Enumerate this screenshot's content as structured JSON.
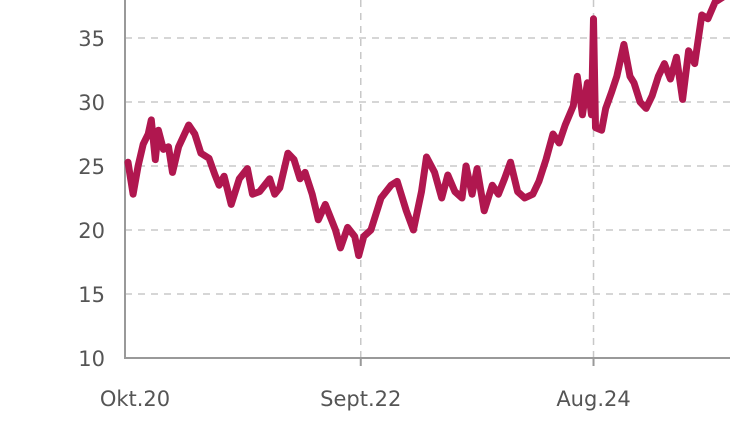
{
  "chart_data": {
    "type": "line",
    "title": "",
    "xlabel": "",
    "ylabel": "",
    "ylim": [
      10,
      38
    ],
    "y_ticks": [
      10,
      15,
      20,
      25,
      30,
      35
    ],
    "x_ticks": [
      {
        "label": "Okt.20",
        "month": 0
      },
      {
        "label": "Sept.22",
        "month": 23
      },
      {
        "label": "Aug.24",
        "month": 46
      }
    ],
    "grid": "dashed",
    "line_color": "#b0174f",
    "series": [
      {
        "name": "",
        "points": [
          [
            0,
            25.3
          ],
          [
            0.5,
            22.8
          ],
          [
            1,
            25.0
          ],
          [
            1.5,
            26.7
          ],
          [
            2,
            27.5
          ],
          [
            2.3,
            28.6
          ],
          [
            2.7,
            25.5
          ],
          [
            3,
            27.8
          ],
          [
            3.5,
            26.3
          ],
          [
            4,
            26.5
          ],
          [
            4.4,
            24.5
          ],
          [
            5,
            26.5
          ],
          [
            6,
            28.2
          ],
          [
            6.6,
            27.5
          ],
          [
            7.2,
            26.0
          ],
          [
            8,
            25.6
          ],
          [
            8.6,
            24.3
          ],
          [
            9,
            23.5
          ],
          [
            9.5,
            24.2
          ],
          [
            10.2,
            22.0
          ],
          [
            11,
            24.0
          ],
          [
            11.8,
            24.8
          ],
          [
            12.3,
            22.8
          ],
          [
            13,
            23.0
          ],
          [
            14,
            24.0
          ],
          [
            14.5,
            22.8
          ],
          [
            15,
            23.3
          ],
          [
            15.8,
            26.0
          ],
          [
            16.4,
            25.5
          ],
          [
            17,
            24.0
          ],
          [
            17.5,
            24.5
          ],
          [
            18.2,
            22.8
          ],
          [
            18.8,
            20.8
          ],
          [
            19.5,
            22.0
          ],
          [
            20.5,
            20.0
          ],
          [
            21,
            18.6
          ],
          [
            21.7,
            20.2
          ],
          [
            22.4,
            19.5
          ],
          [
            22.8,
            18.0
          ],
          [
            23.3,
            19.5
          ],
          [
            24,
            20.0
          ],
          [
            25,
            22.5
          ],
          [
            26,
            23.5
          ],
          [
            26.6,
            23.8
          ],
          [
            27.5,
            21.5
          ],
          [
            28.2,
            20.0
          ],
          [
            29,
            23.0
          ],
          [
            29.5,
            25.7
          ],
          [
            30.3,
            24.5
          ],
          [
            31,
            22.5
          ],
          [
            31.6,
            24.3
          ],
          [
            32.3,
            23.0
          ],
          [
            33,
            22.5
          ],
          [
            33.4,
            25.0
          ],
          [
            34,
            22.8
          ],
          [
            34.5,
            24.8
          ],
          [
            35.2,
            21.5
          ],
          [
            36,
            23.5
          ],
          [
            36.6,
            22.8
          ],
          [
            37.2,
            24.0
          ],
          [
            37.8,
            25.3
          ],
          [
            38.5,
            23.0
          ],
          [
            39.2,
            22.5
          ],
          [
            40,
            22.8
          ],
          [
            40.6,
            23.8
          ],
          [
            41.3,
            25.5
          ],
          [
            42,
            27.5
          ],
          [
            42.6,
            26.8
          ],
          [
            43.2,
            28.2
          ],
          [
            44,
            29.7
          ],
          [
            44.4,
            32.0
          ],
          [
            44.9,
            29.0
          ],
          [
            45.4,
            31.5
          ],
          [
            45.8,
            29.0
          ],
          [
            46.0,
            36.5
          ],
          [
            46.2,
            28.0
          ],
          [
            46.8,
            27.8
          ],
          [
            47.2,
            29.5
          ],
          [
            47.8,
            30.8
          ],
          [
            48.3,
            32.0
          ],
          [
            49,
            34.5
          ],
          [
            49.6,
            32.0
          ],
          [
            50,
            31.5
          ],
          [
            50.6,
            30.0
          ],
          [
            51.2,
            29.5
          ],
          [
            51.8,
            30.5
          ],
          [
            52.4,
            32.0
          ],
          [
            53,
            33.0
          ],
          [
            53.6,
            31.8
          ],
          [
            54.2,
            33.5
          ],
          [
            54.8,
            30.2
          ],
          [
            55.4,
            34.0
          ],
          [
            56,
            33.0
          ],
          [
            56.7,
            36.8
          ],
          [
            57.3,
            36.5
          ],
          [
            58,
            37.8
          ],
          [
            58.8,
            38.2
          ]
        ]
      }
    ]
  }
}
